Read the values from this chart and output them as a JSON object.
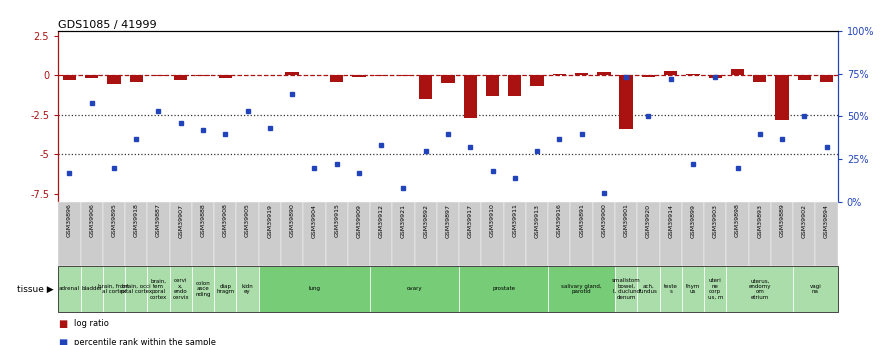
{
  "title": "GDS1085 / 41999",
  "gsm_labels": [
    "GSM39896",
    "GSM39906",
    "GSM39895",
    "GSM39918",
    "GSM39887",
    "GSM39907",
    "GSM39888",
    "GSM39908",
    "GSM39905",
    "GSM39919",
    "GSM39890",
    "GSM39904",
    "GSM39915",
    "GSM39909",
    "GSM39912",
    "GSM39921",
    "GSM39892",
    "GSM39897",
    "GSM39917",
    "GSM39910",
    "GSM39911",
    "GSM39913",
    "GSM39916",
    "GSM39891",
    "GSM39900",
    "GSM39901",
    "GSM39920",
    "GSM39914",
    "GSM39899",
    "GSM39903",
    "GSM39898",
    "GSM39893",
    "GSM39889",
    "GSM39902",
    "GSM39894"
  ],
  "log_ratios": [
    -0.3,
    -0.15,
    -0.55,
    -0.45,
    -0.05,
    -0.3,
    -0.05,
    -0.15,
    0.05,
    0.05,
    0.2,
    0.05,
    -0.4,
    -0.1,
    -0.05,
    -0.05,
    -1.5,
    -0.5,
    -2.7,
    -1.3,
    -1.3,
    -0.7,
    0.1,
    0.15,
    0.2,
    -3.4,
    -0.1,
    0.3,
    0.1,
    -0.2,
    0.4,
    -0.4,
    -2.8,
    -0.3,
    -0.4
  ],
  "percentile_ranks": [
    17,
    58,
    20,
    37,
    53,
    46,
    42,
    40,
    53,
    43,
    63,
    20,
    22,
    17,
    33,
    8,
    30,
    40,
    32,
    18,
    14,
    30,
    37,
    40,
    5,
    73,
    50,
    72,
    22,
    73,
    20,
    40,
    37,
    50,
    32
  ],
  "tissue_groups": [
    {
      "label": "adrenal",
      "start": 0,
      "end": 1,
      "color": "#aaddaa"
    },
    {
      "label": "bladder",
      "start": 1,
      "end": 2,
      "color": "#aaddaa"
    },
    {
      "label": "brain, front\nal cortex",
      "start": 2,
      "end": 3,
      "color": "#aaddaa"
    },
    {
      "label": "brain, occi\npital cortex",
      "start": 3,
      "end": 4,
      "color": "#aaddaa"
    },
    {
      "label": "brain,\ntem\nporal\ncortex",
      "start": 4,
      "end": 5,
      "color": "#aaddaa"
    },
    {
      "label": "cervi\nx,\nendo\ncervix",
      "start": 5,
      "end": 6,
      "color": "#aaddaa"
    },
    {
      "label": "colon\nasce\nnding",
      "start": 6,
      "end": 7,
      "color": "#aaddaa"
    },
    {
      "label": "diap\nhragm",
      "start": 7,
      "end": 8,
      "color": "#aaddaa"
    },
    {
      "label": "kidn\ney",
      "start": 8,
      "end": 9,
      "color": "#aaddaa"
    },
    {
      "label": "lung",
      "start": 9,
      "end": 14,
      "color": "#77cc77"
    },
    {
      "label": "ovary",
      "start": 14,
      "end": 18,
      "color": "#77cc77"
    },
    {
      "label": "prostate",
      "start": 18,
      "end": 22,
      "color": "#77cc77"
    },
    {
      "label": "salivary gland,\nparotid",
      "start": 22,
      "end": 25,
      "color": "#77cc77"
    },
    {
      "label": "smallstom\nbowel,\nI, duclund\ndenum",
      "start": 25,
      "end": 26,
      "color": "#aaddaa"
    },
    {
      "label": "ach,\nfundus",
      "start": 26,
      "end": 27,
      "color": "#aaddaa"
    },
    {
      "label": "teste\ns",
      "start": 27,
      "end": 28,
      "color": "#aaddaa"
    },
    {
      "label": "thym\nus",
      "start": 28,
      "end": 29,
      "color": "#aaddaa"
    },
    {
      "label": "uteri\nne\ncorp\nus, m",
      "start": 29,
      "end": 30,
      "color": "#aaddaa"
    },
    {
      "label": "uterus,\nendomy\nom\netrium",
      "start": 30,
      "end": 33,
      "color": "#aaddaa"
    },
    {
      "label": "vagi\nna",
      "start": 33,
      "end": 35,
      "color": "#aaddaa"
    }
  ],
  "bar_color": "#aa1111",
  "dot_color": "#2244bb",
  "dashed_line_color": "#aa1111",
  "dotted_line_color": "#333333",
  "ylim_left": [
    -8.0,
    2.8
  ],
  "ylim_right": [
    0,
    100
  ],
  "yticks_left": [
    2.5,
    0,
    -2.5,
    -5.0,
    -7.5
  ],
  "yticks_right": [
    100,
    75,
    50,
    25,
    0
  ],
  "background_color": "#ffffff",
  "xticklabel_bg": "#cccccc"
}
